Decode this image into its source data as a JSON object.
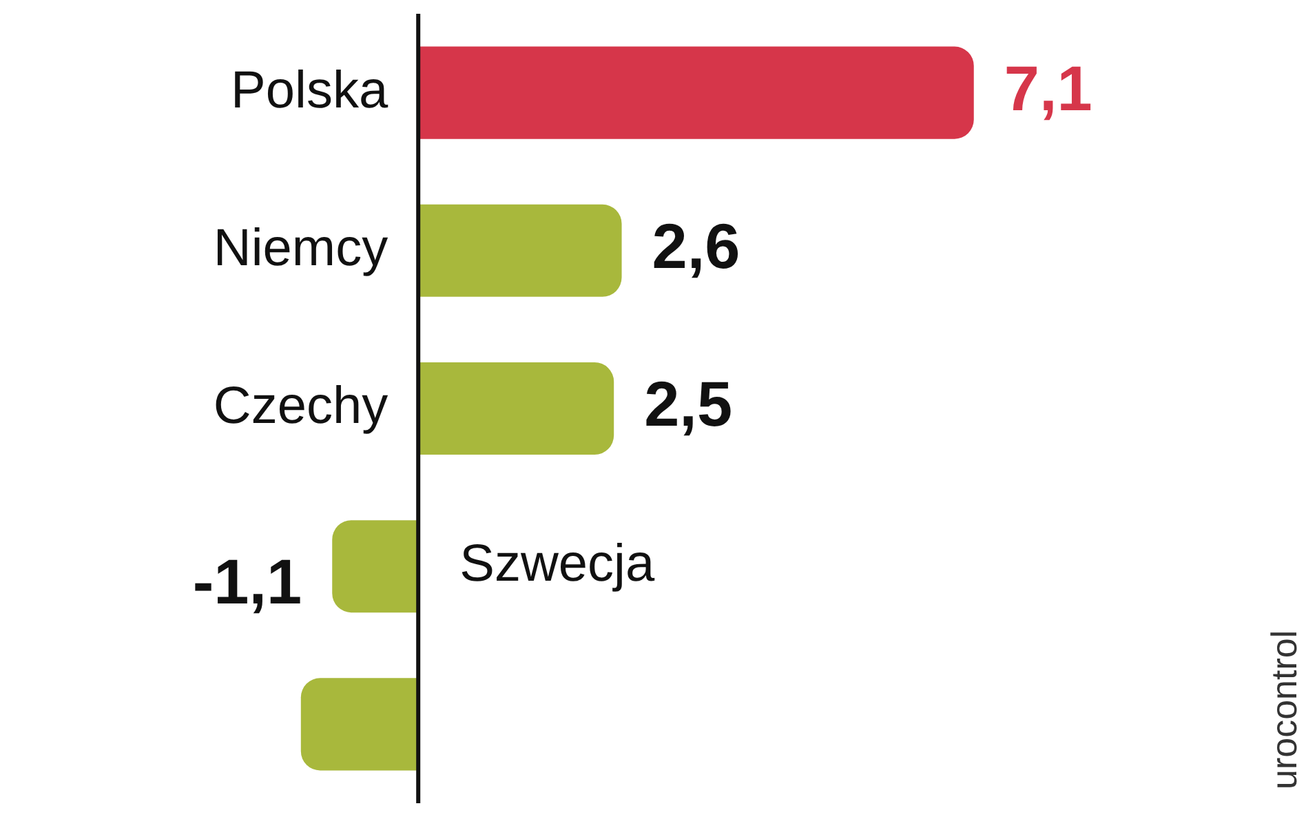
{
  "chart_data": {
    "type": "bar",
    "orientation": "horizontal",
    "categories": [
      "Polska",
      "Niemcy",
      "Czechy",
      "Szwecja",
      null
    ],
    "values": [
      7.1,
      2.6,
      2.5,
      -1.1,
      -1.5
    ],
    "value_labels": [
      "7,1",
      "2,6",
      "2,5",
      "-1,1",
      null
    ],
    "colors": [
      "#d6364a",
      "#a8b83c",
      "#a8b83c",
      "#a8b83c",
      "#a8b83c"
    ],
    "annotations": [
      "urocontrol"
    ]
  }
}
